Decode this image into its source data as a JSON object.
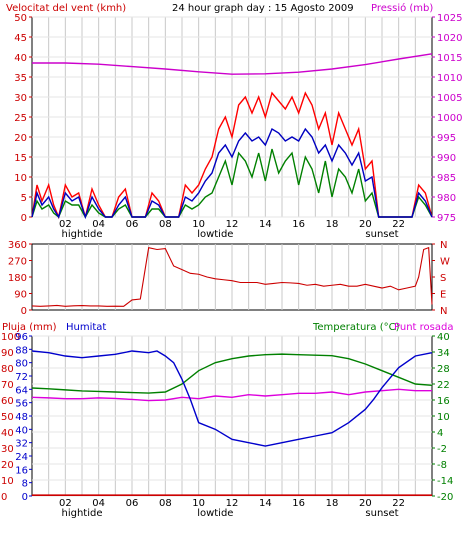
{
  "chart_data": [
    {
      "type": "line",
      "panel": "wind_pressure",
      "title": "24 hour graph day : 15 Agosto 2009",
      "left_label": "Velocitat del vent (kmh)",
      "right_label": "Pressió (mb)",
      "yticks_left": [
        0,
        5,
        10,
        15,
        20,
        25,
        30,
        35,
        40,
        45,
        50
      ],
      "yticks_right": [
        975,
        980,
        985,
        990,
        995,
        1000,
        1005,
        1010,
        1015,
        1020,
        1025
      ],
      "ylim_left": [
        0,
        50
      ],
      "ylim_right": [
        975,
        1025
      ],
      "xticks": [
        "02",
        "04",
        "06",
        "08",
        "10",
        "12",
        "14",
        "16",
        "18",
        "20",
        "22"
      ],
      "markers": [
        "hightide",
        "lowtide",
        "sunset"
      ],
      "grid": true,
      "colors": {
        "gust": "#ff0000",
        "wind": "#0000c0",
        "average": "#008000",
        "pressure": "#cc00cc",
        "axis_left": "#cc0000",
        "axis_right": "#cc00cc"
      },
      "series": [
        {
          "values_key": "gust",
          "x": [
            0,
            0.3,
            0.6,
            1,
            1.3,
            1.6,
            2,
            2.4,
            2.8,
            3.2,
            3.6,
            4,
            4.4,
            4.8,
            5.2,
            5.6,
            6,
            6.4,
            6.8,
            7.2,
            7.6,
            8,
            8.4,
            8.8,
            9.2,
            9.6,
            10,
            10.4,
            10.8,
            11.2,
            11.6,
            12,
            12.4,
            12.8,
            13.2,
            13.6,
            14,
            14.4,
            14.8,
            15.2,
            15.6,
            16,
            16.4,
            16.8,
            17.2,
            17.6,
            18,
            18.4,
            18.8,
            19.2,
            19.6,
            20,
            20.4,
            20.8,
            21.2,
            21.6,
            22,
            22.4,
            22.8,
            23.2,
            23.6,
            24
          ],
          "values": [
            0,
            8,
            4,
            8,
            3,
            0,
            8,
            5,
            6,
            0,
            7,
            3,
            0,
            0,
            5,
            7,
            0,
            0,
            0,
            6,
            4,
            0,
            0,
            0,
            8,
            6,
            8,
            12,
            15,
            22,
            25,
            20,
            28,
            30,
            26,
            30,
            25,
            31,
            29,
            27,
            30,
            26,
            31,
            28,
            22,
            26,
            18,
            26,
            22,
            18,
            22,
            12,
            14,
            0,
            0,
            0,
            0,
            0,
            0,
            8,
            6,
            0
          ]
        },
        {
          "values_key": "wind",
          "x": [
            0,
            0.3,
            0.6,
            1,
            1.3,
            1.6,
            2,
            2.4,
            2.8,
            3.2,
            3.6,
            4,
            4.4,
            4.8,
            5.2,
            5.6,
            6,
            6.4,
            6.8,
            7.2,
            7.6,
            8,
            8.4,
            8.8,
            9.2,
            9.6,
            10,
            10.4,
            10.8,
            11.2,
            11.6,
            12,
            12.4,
            12.8,
            13.2,
            13.6,
            14,
            14.4,
            14.8,
            15.2,
            15.6,
            16,
            16.4,
            16.8,
            17.2,
            17.6,
            18,
            18.4,
            18.8,
            19.2,
            19.6,
            20,
            20.4,
            20.8,
            21.2,
            21.6,
            22,
            22.4,
            22.8,
            23.2,
            23.6,
            24
          ],
          "values": [
            0,
            6,
            3,
            5,
            2,
            0,
            6,
            4,
            5,
            0,
            5,
            2,
            0,
            0,
            3,
            5,
            0,
            0,
            0,
            4,
            3,
            0,
            0,
            0,
            5,
            4,
            6,
            9,
            11,
            16,
            18,
            15,
            19,
            21,
            19,
            20,
            18,
            22,
            21,
            19,
            20,
            19,
            22,
            20,
            16,
            18,
            14,
            18,
            16,
            13,
            16,
            9,
            10,
            0,
            0,
            0,
            0,
            0,
            0,
            6,
            4,
            0
          ]
        },
        {
          "values_key": "average",
          "x": [
            0,
            0.3,
            0.6,
            1,
            1.3,
            1.6,
            2,
            2.4,
            2.8,
            3.2,
            3.6,
            4,
            4.4,
            4.8,
            5.2,
            5.6,
            6,
            6.4,
            6.8,
            7.2,
            7.6,
            8,
            8.4,
            8.8,
            9.2,
            9.6,
            10,
            10.4,
            10.8,
            11.2,
            11.6,
            12,
            12.4,
            12.8,
            13.2,
            13.6,
            14,
            14.4,
            14.8,
            15.2,
            15.6,
            16,
            16.4,
            16.8,
            17.2,
            17.6,
            18,
            18.4,
            18.8,
            19.2,
            19.6,
            20,
            20.4,
            20.8,
            21.2,
            21.6,
            22,
            22.4,
            22.8,
            23.2,
            23.6,
            24
          ],
          "values": [
            0,
            4,
            2,
            3,
            1,
            0,
            4,
            3,
            3,
            0,
            3,
            1,
            0,
            0,
            2,
            3,
            0,
            0,
            0,
            2,
            2,
            0,
            0,
            0,
            3,
            2,
            3,
            5,
            6,
            10,
            14,
            8,
            16,
            14,
            10,
            16,
            9,
            17,
            11,
            14,
            16,
            8,
            15,
            12,
            6,
            14,
            5,
            12,
            10,
            6,
            12,
            4,
            6,
            0,
            0,
            0,
            0,
            0,
            0,
            5,
            3,
            0
          ]
        },
        {
          "values_key": "pressure",
          "x": [
            0,
            2,
            4,
            6,
            8,
            10,
            12,
            14,
            16,
            18,
            20,
            22,
            24
          ],
          "values": [
            1013.5,
            1013.5,
            1013.2,
            1012.6,
            1012.0,
            1011.3,
            1010.7,
            1010.8,
            1011.2,
            1012.0,
            1013.1,
            1014.5,
            1015.8
          ]
        }
      ]
    },
    {
      "type": "line",
      "panel": "wind_direction",
      "left_ticks": [
        "360",
        "270",
        "180",
        "90",
        "0"
      ],
      "right_ticks": [
        "N",
        "W",
        "S",
        "E",
        "N"
      ],
      "ylim": [
        0,
        360
      ],
      "direction": {
        "x": [
          0,
          0.5,
          1,
          1.5,
          2,
          2.5,
          3,
          3.5,
          4,
          4.5,
          5,
          5.5,
          6,
          6.5,
          7,
          7.5,
          8,
          8.5,
          9,
          9.5,
          10,
          10.5,
          11,
          11.5,
          12,
          12.5,
          13,
          13.5,
          14,
          14.5,
          15,
          15.5,
          16,
          16.5,
          17,
          17.5,
          18,
          18.5,
          19,
          19.5,
          20,
          20.5,
          21,
          21.5,
          22,
          22.5,
          23,
          23.2,
          23.5,
          23.8,
          24
        ],
        "values": [
          22,
          20,
          22,
          25,
          20,
          23,
          24,
          22,
          22,
          20,
          21,
          20,
          55,
          60,
          340,
          330,
          335,
          240,
          220,
          200,
          195,
          180,
          170,
          165,
          160,
          150,
          150,
          150,
          140,
          145,
          150,
          148,
          145,
          135,
          140,
          130,
          135,
          140,
          130,
          130,
          140,
          130,
          120,
          130,
          110,
          120,
          130,
          180,
          330,
          340,
          30
        ]
      }
    },
    {
      "type": "line",
      "panel": "rain_humidity_temperature",
      "labels": {
        "rain": "Pluja (mm)",
        "humidity": "Humitat",
        "temperature": "Temperatura (°C)",
        "dewpoint": "Punt rosada"
      },
      "yticks_rain": [
        0,
        10,
        20,
        30,
        40,
        50,
        60,
        70,
        80,
        90,
        100
      ],
      "yticks_humidity": [
        0,
        8,
        16,
        24,
        32,
        40,
        48,
        56,
        64,
        72,
        80,
        88,
        96
      ],
      "yticks_right": [
        -20,
        -14,
        -8,
        -2,
        4,
        10,
        16,
        22,
        28,
        34,
        40
      ],
      "ylim_rain": [
        0,
        100
      ],
      "ylim_humidity": [
        0,
        96
      ],
      "ylim_right": [
        -20,
        40
      ],
      "xticks": [
        "02",
        "04",
        "06",
        "08",
        "10",
        "12",
        "14",
        "16",
        "18",
        "20",
        "22"
      ],
      "markers": [
        "hightide",
        "lowtide",
        "sunset"
      ],
      "colors": {
        "rain": "#cc0000",
        "humidity": "#0000cc",
        "temperature": "#008000",
        "dewpoint": "#dd00dd"
      },
      "rain": {
        "x": [
          0,
          24
        ],
        "values": [
          0.5,
          0.5
        ]
      },
      "humidity": {
        "x": [
          0,
          1,
          2,
          3,
          4,
          5,
          6,
          7,
          7.5,
          8,
          8.5,
          9,
          9.5,
          10,
          11,
          12,
          13,
          14,
          15,
          16,
          17,
          18,
          19,
          20,
          20.5,
          21,
          22,
          23,
          24
        ],
        "values": [
          87,
          86,
          84,
          83,
          84,
          85,
          87,
          86,
          87,
          84,
          80,
          70,
          58,
          44,
          40,
          34,
          32,
          30,
          32,
          34,
          36,
          38,
          44,
          52,
          58,
          65,
          77,
          84,
          86
        ]
      },
      "temperature": {
        "x": [
          0,
          1,
          2,
          3,
          4,
          5,
          6,
          7,
          8,
          9,
          10,
          11,
          12,
          13,
          14,
          15,
          16,
          17,
          18,
          19,
          20,
          21,
          22,
          23,
          24
        ],
        "values": [
          20.5,
          20.2,
          19.8,
          19.4,
          19.2,
          19.0,
          18.8,
          18.6,
          19.0,
          22.0,
          27.0,
          30.0,
          31.5,
          32.5,
          33.0,
          33.2,
          33.0,
          32.8,
          32.6,
          31.5,
          29.5,
          27.0,
          24.5,
          22.0,
          21.5
        ]
      },
      "dewpoint": {
        "x": [
          0,
          1,
          2,
          3,
          4,
          5,
          6,
          7,
          8,
          9,
          10,
          11,
          12,
          13,
          14,
          15,
          16,
          17,
          18,
          19,
          20,
          21,
          22,
          23,
          24
        ],
        "values": [
          17.0,
          16.8,
          16.5,
          16.5,
          16.8,
          16.6,
          16.2,
          15.8,
          16.0,
          17.0,
          16.5,
          17.5,
          17.0,
          18.0,
          17.5,
          18.0,
          18.5,
          18.5,
          19.0,
          18.0,
          19.0,
          19.5,
          20.0,
          19.5,
          19.5
        ]
      }
    }
  ]
}
